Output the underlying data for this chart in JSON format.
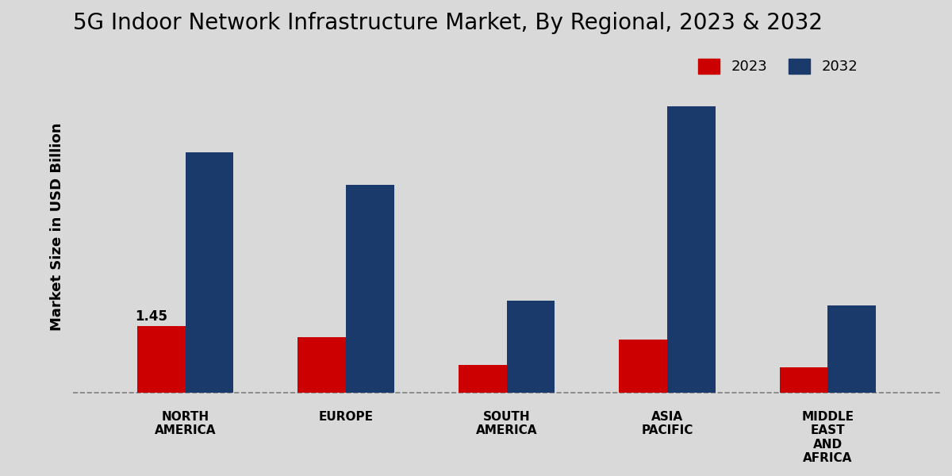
{
  "title": "5G Indoor Network Infrastructure Market, By Regional, 2023 & 2032",
  "ylabel": "Market Size in USD Billion",
  "categories": [
    "NORTH\nAMERICA",
    "EUROPE",
    "SOUTH\nAMERICA",
    "ASIA\nPACIFIC",
    "MIDDLE\nEAST\nAND\nAFRICA"
  ],
  "values_2023": [
    1.45,
    1.2,
    0.6,
    1.15,
    0.55
  ],
  "values_2032": [
    5.2,
    4.5,
    2.0,
    6.2,
    1.9
  ],
  "color_2023": "#cc0000",
  "color_2032": "#1a3a6b",
  "bar_width": 0.3,
  "annotation_label": "1.45",
  "annotation_region": 0,
  "background_color": "#d9d9d9",
  "dashed_line_y": 0,
  "ylim": [
    -0.3,
    7.5
  ],
  "title_fontsize": 20,
  "legend_fontsize": 13,
  "axis_label_fontsize": 13,
  "tick_fontsize": 11
}
